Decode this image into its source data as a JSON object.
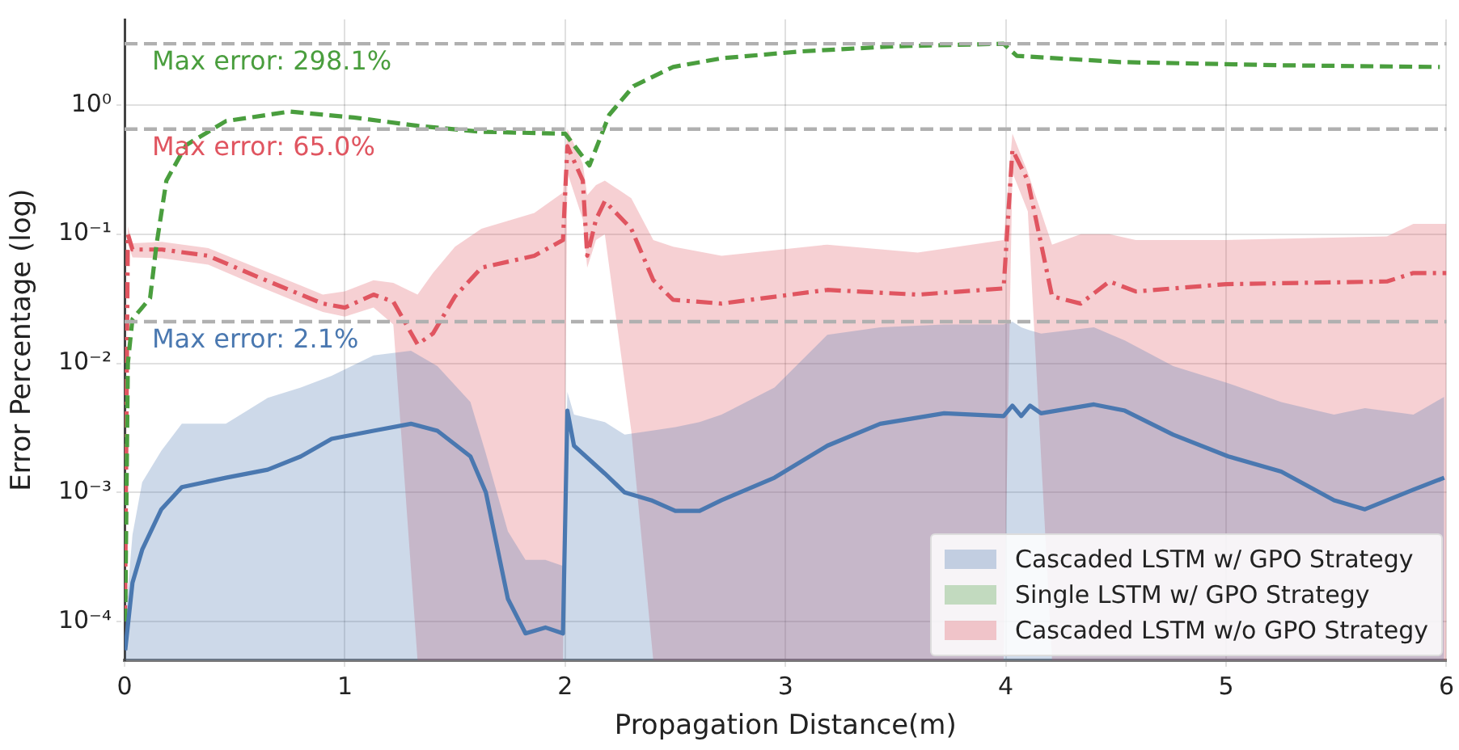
{
  "chart_data": {
    "type": "line",
    "xlabel": "Propagation Distance(m)",
    "ylabel": "Error Percentage (log)",
    "log": "y",
    "grid": true,
    "legend": "bottom right",
    "marker": "none",
    "xlim": [
      0,
      6
    ],
    "xticks": [
      0,
      1,
      2,
      3,
      4,
      5,
      6
    ],
    "ylim": [
      5e-05,
      4.6
    ],
    "yticks": [
      {
        "value": 0.0001,
        "label": "10⁻⁴"
      },
      {
        "value": 0.001,
        "label": "10⁻³"
      },
      {
        "value": 0.01,
        "label": "10⁻²"
      },
      {
        "value": 0.1,
        "label": "10⁻¹"
      },
      {
        "value": 1,
        "label": "10⁰"
      }
    ],
    "ref_lines": [
      {
        "axis": "y",
        "value": 2.981,
        "label": "Max error: 298.1%",
        "color": "#b0b0b0",
        "line_style": "dashed"
      },
      {
        "axis": "y",
        "value": 0.65,
        "label": "Max error: 65.0%",
        "color": "#b0b0b0",
        "line_style": "dashed"
      },
      {
        "axis": "y",
        "value": 0.021,
        "label": "Max error: 2.1%",
        "color": "#b0b0b0",
        "line_style": "dashed"
      }
    ],
    "series": [
      {
        "name": "Cascaded LSTM w/ GPO Strategy",
        "color": "#4a78b0",
        "line_style": "solid",
        "x": [
          0.003,
          0.036,
          0.08,
          0.167,
          0.26,
          0.46,
          0.65,
          0.8,
          0.94,
          1.13,
          1.3,
          1.42,
          1.57,
          1.64,
          1.74,
          1.82,
          1.91,
          1.99,
          2.01,
          2.04,
          2.18,
          2.27,
          2.39,
          2.5,
          2.61,
          2.71,
          2.95,
          3.19,
          3.43,
          3.72,
          3.99,
          4.03,
          4.07,
          4.11,
          4.16,
          4.4,
          4.54,
          4.76,
          5.01,
          5.25,
          5.49,
          5.63,
          5.85,
          5.99
        ],
        "values": [
          6e-05,
          0.0002,
          0.00036,
          0.00074,
          0.0011,
          0.0013,
          0.0015,
          0.0019,
          0.0026,
          0.003,
          0.0034,
          0.003,
          0.0019,
          0.001,
          0.00015,
          8.1e-05,
          9e-05,
          8.1e-05,
          0.0043,
          0.0023,
          0.0014,
          0.001,
          0.00087,
          0.00072,
          0.00072,
          0.00087,
          0.0013,
          0.0023,
          0.0034,
          0.0041,
          0.0039,
          0.0047,
          0.0039,
          0.0047,
          0.0041,
          0.0048,
          0.0043,
          0.0028,
          0.0019,
          0.00145,
          0.00087,
          0.00074,
          0.00105,
          0.0013
        ],
        "lower": [
          5e-05,
          5e-05,
          5e-05,
          5e-05,
          5e-05,
          5e-05,
          5e-05,
          5e-05,
          5e-05,
          5e-05,
          5e-05,
          5e-05,
          5e-05,
          5e-05,
          5e-05,
          5e-05,
          5e-05,
          5e-05,
          5e-05,
          5e-05,
          5e-05,
          5e-05,
          5e-05,
          5e-05,
          5e-05,
          5e-05,
          5e-05,
          5e-05,
          5e-05,
          5e-05,
          5e-05,
          5e-05,
          5e-05,
          5e-05,
          5e-05,
          5e-05,
          5e-05,
          5e-05,
          5e-05,
          5e-05,
          5e-05,
          5e-05,
          5e-05,
          5e-05
        ],
        "upper": [
          0.0001,
          0.00047,
          0.0012,
          0.0021,
          0.0034,
          0.0034,
          0.0054,
          0.0065,
          0.008,
          0.0115,
          0.0125,
          0.0095,
          0.005,
          0.002,
          0.0005,
          0.0003,
          0.0003,
          0.00027,
          0.006,
          0.004,
          0.0035,
          0.0028,
          0.003,
          0.0032,
          0.0035,
          0.004,
          0.0065,
          0.0166,
          0.019,
          0.02,
          0.02,
          0.021,
          0.019,
          0.018,
          0.017,
          0.019,
          0.015,
          0.0095,
          0.007,
          0.005,
          0.004,
          0.0045,
          0.004,
          0.0055
        ]
      },
      {
        "name": "Single LSTM w/ GPO Strategy",
        "color": "#4a9e3e",
        "line_style": "dashed",
        "x": [
          0.003,
          0.015,
          0.036,
          0.08,
          0.116,
          0.145,
          0.19,
          0.28,
          0.46,
          0.75,
          1.04,
          1.33,
          1.62,
          1.98,
          2.0,
          2.11,
          2.2,
          2.31,
          2.49,
          2.71,
          3.07,
          3.5,
          3.99,
          4.05,
          4.52,
          5.25,
          5.97
        ],
        "values": [
          0.0001,
          0.01,
          0.022,
          0.027,
          0.032,
          0.083,
          0.26,
          0.49,
          0.75,
          0.89,
          0.8,
          0.69,
          0.62,
          0.6,
          0.6,
          0.34,
          0.84,
          1.4,
          1.97,
          2.3,
          2.6,
          2.85,
          2.981,
          2.4,
          2.15,
          2.03,
          1.97
        ]
      },
      {
        "name": "Cascaded LSTM w/o GPO Strategy",
        "color": "#e05560",
        "line_style": "dashdot",
        "x": [
          0.002,
          0.015,
          0.036,
          0.17,
          0.38,
          0.6,
          0.8,
          0.9,
          1.0,
          1.13,
          1.22,
          1.33,
          1.4,
          1.5,
          1.62,
          1.86,
          1.99,
          2.01,
          2.08,
          2.1,
          2.14,
          2.18,
          2.3,
          2.4,
          2.49,
          2.71,
          3.19,
          3.6,
          3.99,
          4.03,
          4.1,
          4.21,
          4.34,
          4.47,
          4.59,
          5.0,
          5.73,
          5.85,
          6.0
        ],
        "values": [
          0.0001,
          0.1,
          0.076,
          0.076,
          0.068,
          0.047,
          0.034,
          0.029,
          0.027,
          0.034,
          0.03,
          0.014,
          0.017,
          0.033,
          0.055,
          0.068,
          0.09,
          0.48,
          0.26,
          0.068,
          0.13,
          0.18,
          0.11,
          0.044,
          0.031,
          0.029,
          0.037,
          0.034,
          0.038,
          0.45,
          0.26,
          0.033,
          0.029,
          0.043,
          0.036,
          0.041,
          0.043,
          0.05,
          0.05
        ],
        "lower": [
          5e-05,
          0.085,
          0.066,
          0.065,
          0.058,
          0.04,
          0.029,
          0.025,
          0.023,
          0.027,
          0.02,
          5e-05,
          5e-05,
          5e-05,
          5e-05,
          5e-05,
          5e-05,
          0.3,
          0.13,
          0.055,
          0.09,
          0.1,
          0.003,
          5e-05,
          5e-05,
          5e-05,
          5e-05,
          5e-05,
          5e-05,
          0.3,
          0.15,
          5e-05,
          5e-05,
          5e-05,
          5e-05,
          5e-05,
          5e-05,
          5e-05,
          5e-05
        ],
        "upper": [
          0.0002,
          0.115,
          0.085,
          0.087,
          0.078,
          0.055,
          0.04,
          0.034,
          0.036,
          0.044,
          0.042,
          0.034,
          0.05,
          0.08,
          0.11,
          0.146,
          0.21,
          0.65,
          0.35,
          0.2,
          0.24,
          0.26,
          0.19,
          0.09,
          0.08,
          0.068,
          0.083,
          0.072,
          0.09,
          0.6,
          0.3,
          0.083,
          0.1,
          0.1,
          0.09,
          0.09,
          0.096,
          0.12,
          0.12
        ]
      }
    ]
  }
}
